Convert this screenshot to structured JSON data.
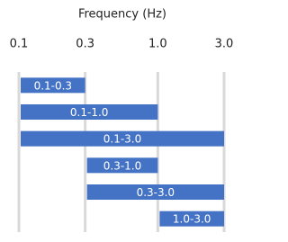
{
  "chart_data": {
    "type": "range-bar",
    "title": "Frequency (Hz)",
    "xscale": "log",
    "xlim": [
      0.1,
      3.0
    ],
    "xticks": [
      0.1,
      0.3,
      {
        "value": 1.0,
        "label": "1.0"
      },
      {
        "value": 3.0,
        "label": "3.0"
      }
    ],
    "grid": true,
    "color": "#4472c4",
    "bars": {
      "start": [
        0.1,
        0.1,
        0.1,
        0.3,
        0.3,
        1.0
      ],
      "end": [
        0.3,
        1.0,
        3.0,
        1.0,
        3.0,
        3.0
      ],
      "labels": [
        "0.1-0.3",
        "0.1-1.0",
        "0.1-3.0",
        "0.3-1.0",
        "0.3-3.0",
        "1.0-3.0"
      ]
    }
  }
}
